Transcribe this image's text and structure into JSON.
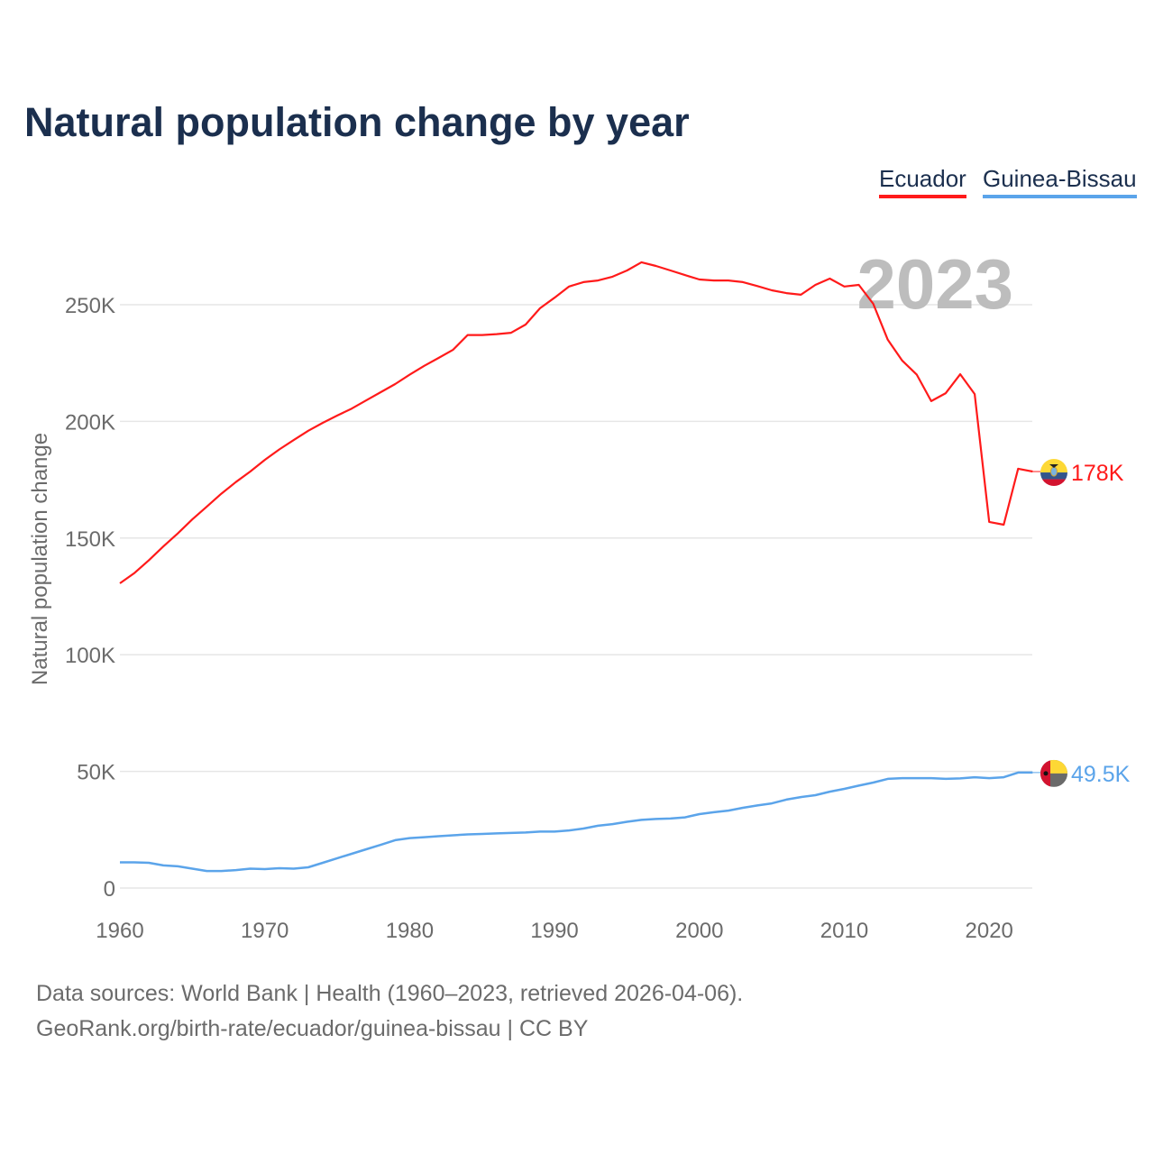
{
  "chart_data": {
    "type": "line",
    "title": "Natural population change by year",
    "ylabel": "Natural population change",
    "xlabel": "",
    "xlim": [
      1960,
      2023
    ],
    "ylim": [
      0,
      270000
    ],
    "x_ticks": [
      1960,
      1970,
      1980,
      1990,
      2000,
      2010,
      2020
    ],
    "x_tick_labels": [
      "1960",
      "1970",
      "1980",
      "1990",
      "2000",
      "2010",
      "2020"
    ],
    "y_ticks": [
      0,
      50000,
      100000,
      150000,
      200000,
      250000
    ],
    "y_tick_labels": [
      "0",
      "50K",
      "100K",
      "150K",
      "200K",
      "250K"
    ],
    "grid": true,
    "legend_position": "top-right",
    "year_label": "2023",
    "x_start": 1960,
    "series": [
      {
        "name": "Ecuador",
        "color": "#ff1a1a",
        "end_label": "178K",
        "values": [
          130.6,
          135,
          140.5,
          146.4,
          152,
          158,
          163.5,
          169,
          174,
          178.5,
          183.5,
          188,
          192,
          196,
          199.4,
          202.5,
          205.5,
          209,
          212.5,
          216,
          220,
          223.8,
          227.2,
          230.7,
          237,
          237,
          237.4,
          238,
          241.5,
          248.5,
          253,
          257.8,
          259.7,
          260.4,
          262,
          264.7,
          268.2,
          266.6,
          264.7,
          262.7,
          260.8,
          260.4,
          260.4,
          259.7,
          258,
          256.2,
          255,
          254.3,
          258.5,
          261.2,
          257.8,
          258.5,
          250.4,
          235,
          226,
          220,
          208.7,
          212.1,
          220.2,
          211.7,
          156.9,
          155.7,
          179.7,
          178.5
        ]
      },
      {
        "name": "Guinea-Bissau",
        "color": "#5ba4ea",
        "end_label": "49.5K",
        "values": [
          11,
          11,
          10.8,
          9.7,
          9.3,
          8.3,
          7.3,
          7.3,
          7.7,
          8.3,
          8.1,
          8.5,
          8.3,
          8.9,
          10.8,
          12.8,
          14.7,
          16.6,
          18.5,
          20.5,
          21.4,
          21.8,
          22.2,
          22.6,
          23,
          23.2,
          23.4,
          23.6,
          23.8,
          24.2,
          24.2,
          24.7,
          25.5,
          26.7,
          27.4,
          28.4,
          29.2,
          29.6,
          29.8,
          30.3,
          31.7,
          32.5,
          33.2,
          34.4,
          35.4,
          36.3,
          37.9,
          39,
          39.8,
          41.3,
          42.5,
          43.9,
          45.2,
          46.8,
          47.1,
          47.1,
          47.1,
          46.8,
          47,
          47.5,
          47.1,
          47.5,
          49.5,
          49.5
        ]
      }
    ],
    "value_unit": "thousands"
  },
  "footer": {
    "line1": "Data sources: World Bank | Health (1960–2023, retrieved 2026-04-06).",
    "line2": "GeoRank.org/birth-rate/ecuador/guinea-bissau | CC BY"
  }
}
